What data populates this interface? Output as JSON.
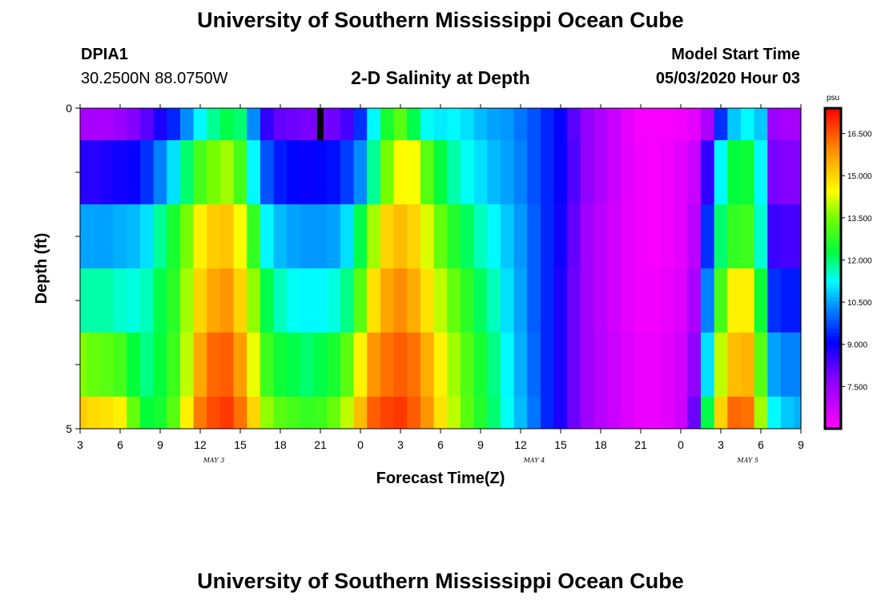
{
  "header": {
    "title_top": "University of Southern Mississippi Ocean Cube",
    "station_id": "DPIA1",
    "station_coords": "30.2500N 88.0750W",
    "plot_title": "2-D Salinity at Depth",
    "model_label": "Model Start Time",
    "model_time": "05/03/2020 Hour 03",
    "title_bottom": "University of Southern Mississippi Ocean Cube"
  },
  "chart_data": {
    "type": "heatmap",
    "title": "2-D Salinity at Depth",
    "xlabel": "Forecast Time(Z)",
    "ylabel": "Depth (ft)",
    "x_ticks": [
      "3",
      "6",
      "9",
      "12",
      "15",
      "18",
      "21",
      "0",
      "3",
      "6",
      "9",
      "12",
      "15",
      "18",
      "21",
      "0",
      "3",
      "6",
      "9"
    ],
    "day_labels": [
      "MAY 3",
      "MAY 4",
      "MAY 5"
    ],
    "y_ticks": [
      "0",
      "5"
    ],
    "ylim": [
      5,
      0
    ],
    "colorbar": {
      "unit": "psu",
      "ticks": [
        "16.500",
        "15.000",
        "13.500",
        "12.000",
        "10.500",
        "9.000",
        "7.500"
      ],
      "range": [
        6.0,
        17.4
      ]
    },
    "x_hours": [
      3,
      4,
      5,
      6,
      7,
      8,
      9,
      10,
      11,
      12,
      13,
      14,
      15,
      16,
      17,
      18,
      19,
      20,
      21,
      22,
      23,
      24,
      25,
      26,
      27,
      28,
      29,
      30,
      31,
      32,
      33,
      34,
      35,
      36,
      37,
      38,
      39,
      40,
      41,
      42,
      43,
      44,
      45,
      46,
      47,
      48,
      49,
      50,
      51,
      52,
      53,
      54,
      55,
      56,
      57
    ],
    "layer_depths_ft": [
      0.25,
      1.0,
      2.0,
      3.0,
      4.0,
      4.75
    ],
    "salinity": [
      [
        7.3,
        7.3,
        7.3,
        7.5,
        7.8,
        8.2,
        8.8,
        9.4,
        10.3,
        11.2,
        11.8,
        12.2,
        12.0,
        10.3,
        8.6,
        8.1,
        8.0,
        7.9,
        7.9,
        8.0,
        8.4,
        9.5,
        11.2,
        12.5,
        13.2,
        12.2,
        11.3,
        11.1,
        11.2,
        11.0,
        10.7,
        10.5,
        10.4,
        10.1,
        9.8,
        9.4,
        9.0,
        8.2,
        7.6,
        7.2,
        6.8,
        6.4,
        6.1,
        6.1,
        6.1,
        6.2,
        6.4,
        7.2,
        9.5,
        10.8,
        11.2,
        10.8,
        7.5,
        7.3,
        7.3
      ],
      [
        8.7,
        8.7,
        8.8,
        8.9,
        9.0,
        9.5,
        10.2,
        11.0,
        12.0,
        13.0,
        13.5,
        13.8,
        13.0,
        11.2,
        9.8,
        9.3,
        9.1,
        9.0,
        9.1,
        9.2,
        9.6,
        10.3,
        11.8,
        13.5,
        14.5,
        14.4,
        13.2,
        12.3,
        11.7,
        11.3,
        11.0,
        10.7,
        10.5,
        10.2,
        9.8,
        9.4,
        9.0,
        8.3,
        7.6,
        7.2,
        6.8,
        6.4,
        6.2,
        6.1,
        6.2,
        6.4,
        6.8,
        8.6,
        11.2,
        12.3,
        12.4,
        11.2,
        7.9,
        7.8,
        7.8
      ],
      [
        10.5,
        10.5,
        10.5,
        10.6,
        10.7,
        11.0,
        11.8,
        12.5,
        13.5,
        14.6,
        15.1,
        15.2,
        14.4,
        12.8,
        11.2,
        10.7,
        10.5,
        10.4,
        10.4,
        10.5,
        11.0,
        12.2,
        13.8,
        15.0,
        15.3,
        15.0,
        14.2,
        13.3,
        12.6,
        12.1,
        11.6,
        11.2,
        10.8,
        10.4,
        9.9,
        9.4,
        8.9,
        8.1,
        7.4,
        7.0,
        6.7,
        6.4,
        6.2,
        6.1,
        6.2,
        6.4,
        7.0,
        9.5,
        12.0,
        12.8,
        12.9,
        11.5,
        8.5,
        8.4,
        8.4
      ],
      [
        11.7,
        11.7,
        11.7,
        11.5,
        11.4,
        11.6,
        12.2,
        12.7,
        13.8,
        15.0,
        15.6,
        15.8,
        15.0,
        13.7,
        12.2,
        11.6,
        11.3,
        11.2,
        11.2,
        11.4,
        11.9,
        13.2,
        14.8,
        15.6,
        15.9,
        15.5,
        14.8,
        14.0,
        13.3,
        12.7,
        12.1,
        11.6,
        11.0,
        10.5,
        9.9,
        9.4,
        8.8,
        8.0,
        7.4,
        7.0,
        6.7,
        6.4,
        6.2,
        6.2,
        6.3,
        6.5,
        7.2,
        10.2,
        13.0,
        14.6,
        14.6,
        12.4,
        9.5,
        9.3,
        9.3
      ],
      [
        13.6,
        13.3,
        13.2,
        13.0,
        12.3,
        11.9,
        12.3,
        12.9,
        14.0,
        15.6,
        16.3,
        16.4,
        15.7,
        14.3,
        12.9,
        12.4,
        12.2,
        12.0,
        12.2,
        12.5,
        13.2,
        14.6,
        15.8,
        16.2,
        16.4,
        16.2,
        15.5,
        14.6,
        13.8,
        13.1,
        12.5,
        11.9,
        11.2,
        10.6,
        10.0,
        9.4,
        8.8,
        8.0,
        7.4,
        7.1,
        6.8,
        6.5,
        6.3,
        6.3,
        6.4,
        6.7,
        7.6,
        11.0,
        14.0,
        15.3,
        15.4,
        13.2,
        10.5,
        10.2,
        10.2
      ],
      [
        15.1,
        14.9,
        14.8,
        14.6,
        13.3,
        12.3,
        12.5,
        13.2,
        14.6,
        16.1,
        16.6,
        16.8,
        16.2,
        15.0,
        13.7,
        13.2,
        13.0,
        12.8,
        12.9,
        13.3,
        14.0,
        15.3,
        16.4,
        16.7,
        16.8,
        16.4,
        15.8,
        14.8,
        14.0,
        13.2,
        12.6,
        12.0,
        11.3,
        10.7,
        10.1,
        9.4,
        8.8,
        8.0,
        7.4,
        7.1,
        6.8,
        6.5,
        6.3,
        6.3,
        6.4,
        6.7,
        8.0,
        12.2,
        15.0,
        16.3,
        16.2,
        13.8,
        11.2,
        10.8,
        10.6
      ]
    ],
    "marker": {
      "x_hour": 21,
      "depth_range_ft": [
        0,
        0.5
      ]
    }
  },
  "colors": {
    "background": "#ffffff",
    "axis": "#000000",
    "colorbar_frame": "#000000"
  }
}
